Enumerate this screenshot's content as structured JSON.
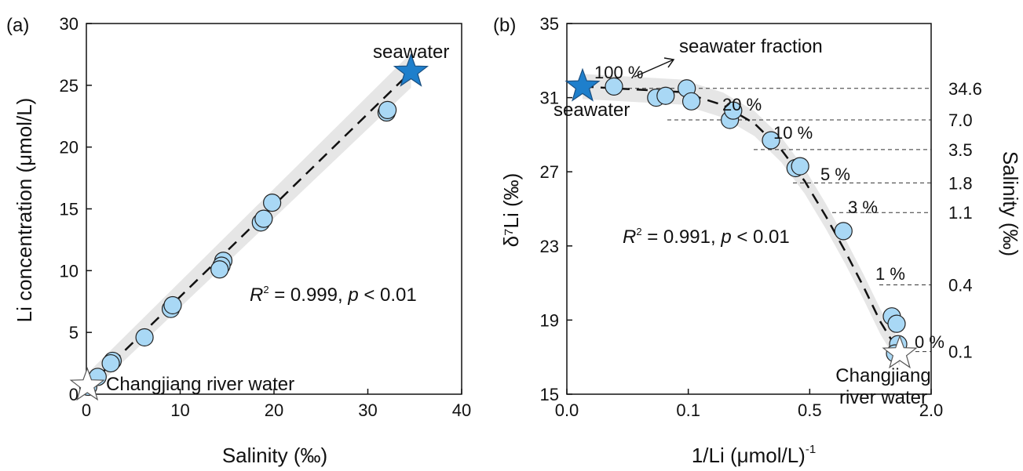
{
  "chart_data": [
    {
      "panel_label": "(a)",
      "type": "scatter",
      "xlabel": "Salinity (‰)",
      "ylabel": "Li concentration (μmol/L)",
      "xlim": [
        0,
        40
      ],
      "ylim": [
        0,
        30
      ],
      "x_ticks": [
        "0",
        "10",
        "20",
        "30",
        "40"
      ],
      "y_ticks": [
        "0",
        "5",
        "10",
        "15",
        "20",
        "25",
        "30"
      ],
      "grid": false,
      "points": [
        {
          "x": 0.2,
          "y": 0.6
        },
        {
          "x": 1.2,
          "y": 1.4
        },
        {
          "x": 2.8,
          "y": 2.7
        },
        {
          "x": 2.6,
          "y": 2.5
        },
        {
          "x": 6.2,
          "y": 4.6
        },
        {
          "x": 9.0,
          "y": 6.9
        },
        {
          "x": 9.2,
          "y": 7.2
        },
        {
          "x": 14.6,
          "y": 10.8
        },
        {
          "x": 14.4,
          "y": 10.4
        },
        {
          "x": 14.2,
          "y": 10.1
        },
        {
          "x": 18.6,
          "y": 13.9
        },
        {
          "x": 18.9,
          "y": 14.2
        },
        {
          "x": 19.8,
          "y": 15.5
        },
        {
          "x": 32.0,
          "y": 22.8
        },
        {
          "x": 32.1,
          "y": 23.0
        }
      ],
      "endmembers": [
        {
          "name": "seawater",
          "x": 34.6,
          "y": 26.1,
          "color": "#1e7fcc"
        },
        {
          "name": "Changjiang river water",
          "x": 0.1,
          "y": 0.7,
          "color": "#ffffff"
        }
      ],
      "fit_line": {
        "x": [
          0,
          34.6
        ],
        "y": [
          0.5,
          26.1
        ],
        "style": "dashed"
      },
      "annotations": {
        "r2_prefix": "R",
        "r2_exp": "2",
        "r2_value": " = 0.999, ",
        "p_letter": "p",
        "p_value": " < 0.01"
      }
    },
    {
      "panel_label": "(b)",
      "type": "scatter",
      "xlabel": "1/Li (μmol/L)",
      "xlabel_exp": "-1",
      "ylabel": "δ⁷Li (‰)",
      "ylabel_right": "Salinity (‰)",
      "xlim": [
        0.0,
        2.0
      ],
      "ylim": [
        15,
        35
      ],
      "x_ticks": [
        "0.0",
        "0.1",
        "0.5",
        "2.0"
      ],
      "y_ticks": [
        "15",
        "19",
        "23",
        "27",
        "31",
        "35"
      ],
      "grid": false,
      "points": [
        {
          "x": 0.01,
          "y": 31.6
        },
        {
          "x": 0.055,
          "y": 31.0
        },
        {
          "x": 0.07,
          "y": 31.1
        },
        {
          "x": 0.11,
          "y": 31.5
        },
        {
          "x": 0.12,
          "y": 30.8
        },
        {
          "x": 0.22,
          "y": 29.8
        },
        {
          "x": 0.23,
          "y": 30.3
        },
        {
          "x": 0.36,
          "y": 28.7
        },
        {
          "x": 0.46,
          "y": 27.2
        },
        {
          "x": 0.48,
          "y": 27.3
        },
        {
          "x": 0.69,
          "y": 23.8
        },
        {
          "x": 0.97,
          "y": 19.2
        },
        {
          "x": 1.0,
          "y": 18.8
        },
        {
          "x": 1.01,
          "y": 17.7
        },
        {
          "x": 0.99,
          "y": 17.2
        }
      ],
      "endmembers": [
        {
          "name": "seawater",
          "x": 0.0,
          "y": 31.6,
          "color": "#1e7fcc"
        },
        {
          "name": "Changjiang river water",
          "x": 1.02,
          "y": 17.2,
          "color": "#ffffff"
        }
      ],
      "mixing_curve": {
        "x": [
          0.0,
          0.1,
          0.2,
          0.3,
          0.4,
          0.5,
          0.6,
          0.7,
          0.8,
          0.9,
          1.02
        ],
        "y": [
          31.6,
          31.3,
          30.6,
          29.6,
          28.2,
          26.5,
          24.6,
          22.7,
          20.8,
          18.9,
          17.2
        ],
        "style": "dashed"
      },
      "fraction_labels": [
        "100 %",
        "20 %",
        "10 %",
        "5 %",
        "3 %",
        "1 %",
        "0 %"
      ],
      "fraction_caption": "seawater fraction",
      "salinity_ticks": [
        "34.6",
        "7.0",
        "3.5",
        "1.8",
        "1.1",
        "0.4",
        "0.1"
      ],
      "salinity_levels_y": [
        31.5,
        29.8,
        28.2,
        26.4,
        24.8,
        20.9,
        17.3
      ],
      "annotations": {
        "r2_prefix": "R",
        "r2_exp": "2",
        "r2_value": " = 0.991, ",
        "p_letter": "p",
        "p_value": " < 0.01"
      },
      "colors": {
        "point_fill": "#a9d8f5",
        "band": "#e6e6e6"
      }
    }
  ]
}
